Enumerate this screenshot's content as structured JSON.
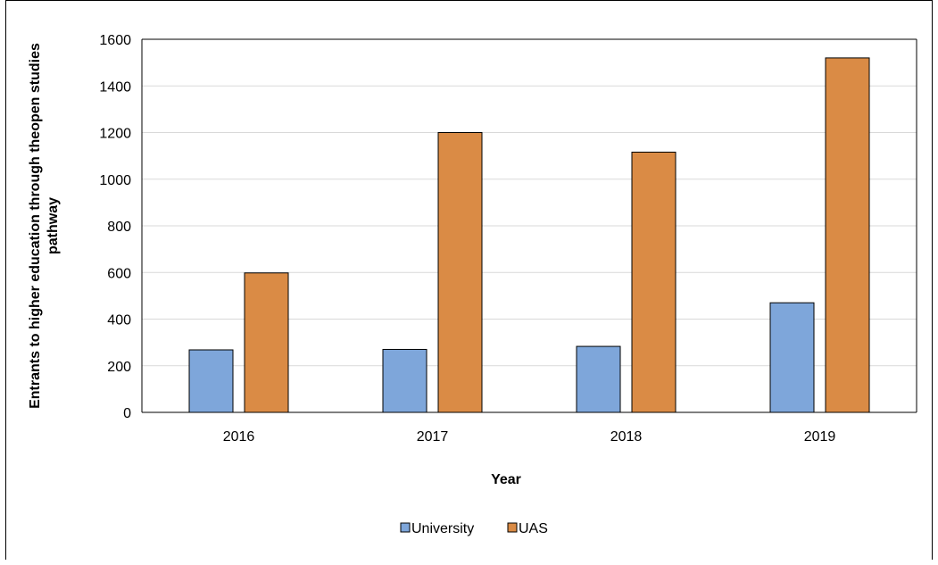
{
  "colors": {
    "university": "#7ea6da",
    "uas": "#da8b45",
    "grid": "#d9d9d9",
    "bar_stroke": "#000000"
  },
  "chart_data": {
    "type": "bar",
    "title": "",
    "xlabel": "Year",
    "ylabel_lines": [
      "Entrants to higher education through theopen studies",
      "pathway"
    ],
    "categories": [
      "2016",
      "2017",
      "2018",
      "2019"
    ],
    "series": [
      {
        "name": "University",
        "values": [
          268,
          270,
          283,
          470
        ]
      },
      {
        "name": "UAS",
        "values": [
          598,
          1200,
          1116,
          1520
        ]
      }
    ],
    "ylim": [
      0,
      1600
    ],
    "yticks": [
      0,
      200,
      400,
      600,
      800,
      1000,
      1200,
      1400,
      1600
    ],
    "grid": true,
    "legend_position": "bottom"
  }
}
